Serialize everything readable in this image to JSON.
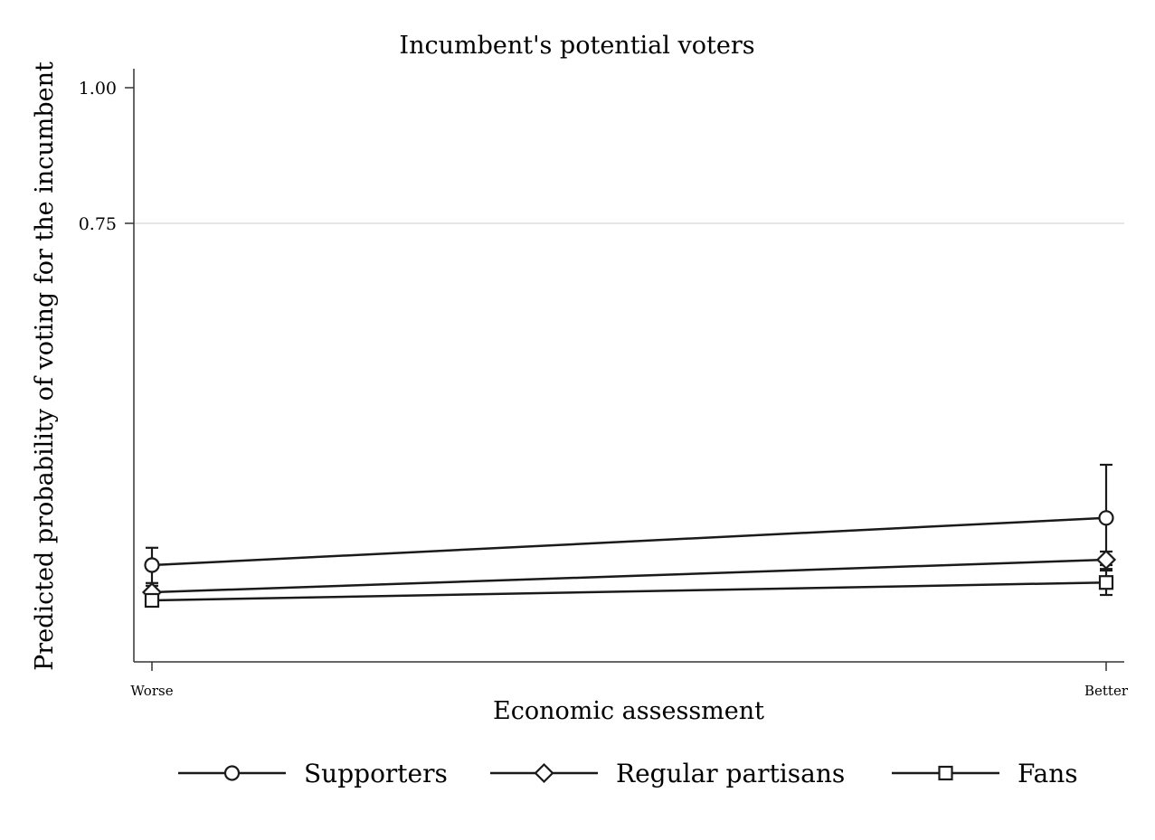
{
  "chart_data": {
    "type": "line",
    "title": "Incumbent's potential voters",
    "xlabel": "Economic assessment",
    "ylabel": "Predicted probability of voting for the incumbent",
    "categories": [
      "Worse",
      "Better"
    ],
    "y_ticks": [
      {
        "value": 0.75,
        "label": "0.75"
      },
      {
        "value": 1.0,
        "label": "1.00"
      }
    ],
    "ylim": [
      0.0,
      1.0
    ],
    "grid": true,
    "legend_position": "bottom",
    "series": [
      {
        "name": "Supporters",
        "marker": "circle",
        "values": [
          0.12,
          0.207
        ],
        "ci": [
          [
            0.087,
            0.152
          ],
          [
            0.11,
            0.305
          ]
        ]
      },
      {
        "name": "Regular partisans",
        "marker": "diamond",
        "values": [
          0.07,
          0.13
        ],
        "ci": [
          [
            0.058,
            0.082
          ],
          [
            0.12,
            0.145
          ]
        ]
      },
      {
        "name": "Fans",
        "marker": "square",
        "values": [
          0.055,
          0.088
        ],
        "ci": [
          [
            0.048,
            0.065
          ],
          [
            0.065,
            0.113
          ]
        ]
      }
    ],
    "colors": {
      "line": "#1a1a1a",
      "grid": "#e6e6e6",
      "axis": "#333333"
    }
  }
}
